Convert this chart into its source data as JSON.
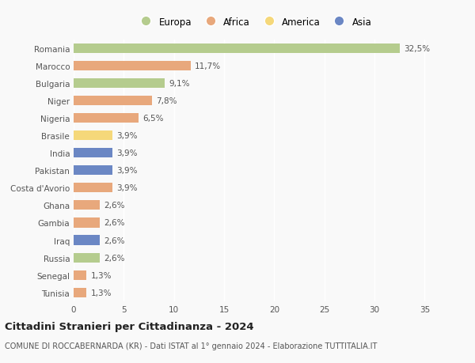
{
  "categories": [
    "Romania",
    "Marocco",
    "Bulgaria",
    "Niger",
    "Nigeria",
    "Brasile",
    "India",
    "Pakistan",
    "Costa d'Avorio",
    "Ghana",
    "Gambia",
    "Iraq",
    "Russia",
    "Senegal",
    "Tunisia"
  ],
  "values": [
    32.5,
    11.7,
    9.1,
    7.8,
    6.5,
    3.9,
    3.9,
    3.9,
    3.9,
    2.6,
    2.6,
    2.6,
    2.6,
    1.3,
    1.3
  ],
  "labels": [
    "32,5%",
    "11,7%",
    "9,1%",
    "7,8%",
    "6,5%",
    "3,9%",
    "3,9%",
    "3,9%",
    "3,9%",
    "2,6%",
    "2,6%",
    "2,6%",
    "2,6%",
    "1,3%",
    "1,3%"
  ],
  "continents": [
    "Europa",
    "Africa",
    "Europa",
    "Africa",
    "Africa",
    "America",
    "Asia",
    "Asia",
    "Africa",
    "Africa",
    "Africa",
    "Asia",
    "Europa",
    "Africa",
    "Africa"
  ],
  "colors": {
    "Europa": "#b5cc8e",
    "Africa": "#e8a87c",
    "America": "#f5d87a",
    "Asia": "#6b87c4"
  },
  "legend_order": [
    "Europa",
    "Africa",
    "America",
    "Asia"
  ],
  "xlim": [
    0,
    36
  ],
  "xticks": [
    0,
    5,
    10,
    15,
    20,
    25,
    30,
    35
  ],
  "title_main": "Cittadini Stranieri per Cittadinanza - 2024",
  "title_sub": "COMUNE DI ROCCABERNARDA (KR) - Dati ISTAT al 1° gennaio 2024 - Elaborazione TUTTITALIA.IT",
  "background_color": "#f9f9f9",
  "bar_height": 0.55,
  "label_fontsize": 7.5,
  "tick_fontsize": 7.5,
  "title_fontsize": 9.5,
  "sub_fontsize": 7.0
}
